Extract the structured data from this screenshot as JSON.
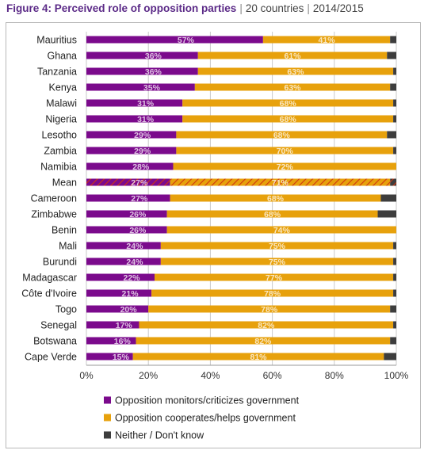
{
  "figure": {
    "label": "Figure 4: Perceived role of opposition parties",
    "countries": "20 countries",
    "period": "2014/2015"
  },
  "colors": {
    "monitors": "#7b0a8c",
    "cooperates": "#e7a10c",
    "neither": "#3d3d3d",
    "title_accent": "#5b2a87"
  },
  "chart_data": {
    "type": "bar",
    "orientation": "horizontal",
    "stacked": true,
    "title": "Figure 4: Perceived role of opposition parties | 20 countries | 2014/2015",
    "xlim": [
      0,
      100
    ],
    "x_ticks": [
      "0%",
      "20%",
      "40%",
      "60%",
      "80%",
      "100%"
    ],
    "grid": true,
    "legend_position": "bottom",
    "highlight_category": "Mean",
    "categories": [
      "Mauritius",
      "Ghana",
      "Tanzania",
      "Kenya",
      "Malawi",
      "Nigeria",
      "Lesotho",
      "Zambia",
      "Namibia",
      "Mean",
      "Cameroon",
      "Zimbabwe",
      "Benin",
      "Mali",
      "Burundi",
      "Madagascar",
      "Côte d'Ivoire",
      "Togo",
      "Senegal",
      "Botswana",
      "Cape Verde"
    ],
    "series": [
      {
        "name": "Opposition monitors/criticizes government",
        "values": [
          57,
          36,
          36,
          35,
          31,
          31,
          29,
          29,
          28,
          27,
          27,
          26,
          26,
          24,
          24,
          22,
          21,
          20,
          17,
          16,
          15
        ]
      },
      {
        "name": "Opposition cooperates/helps government",
        "values": [
          41,
          61,
          63,
          63,
          68,
          68,
          68,
          70,
          72,
          71,
          68,
          68,
          74,
          75,
          75,
          77,
          78,
          78,
          82,
          82,
          81
        ]
      },
      {
        "name": "Neither / Don't know",
        "values": [
          2,
          3,
          1,
          2,
          1,
          1,
          3,
          1,
          0,
          2,
          5,
          6,
          0,
          1,
          1,
          1,
          1,
          2,
          1,
          2,
          4
        ]
      }
    ],
    "data_labels": {
      "monitors": [
        "57%",
        "36%",
        "36%",
        "35%",
        "31%",
        "31%",
        "29%",
        "29%",
        "28%",
        "27%",
        "27%",
        "26%",
        "26%",
        "24%",
        "24%",
        "22%",
        "21%",
        "20%",
        "17%",
        "16%",
        "15%"
      ],
      "cooperates": [
        "41%",
        "61%",
        "63%",
        "63%",
        "68%",
        "68%",
        "68%",
        "70%",
        "72%",
        "71%",
        "68%",
        "68%",
        "74%",
        "75%",
        "75%",
        "77%",
        "78%",
        "78%",
        "82%",
        "82%",
        "81%"
      ]
    }
  }
}
